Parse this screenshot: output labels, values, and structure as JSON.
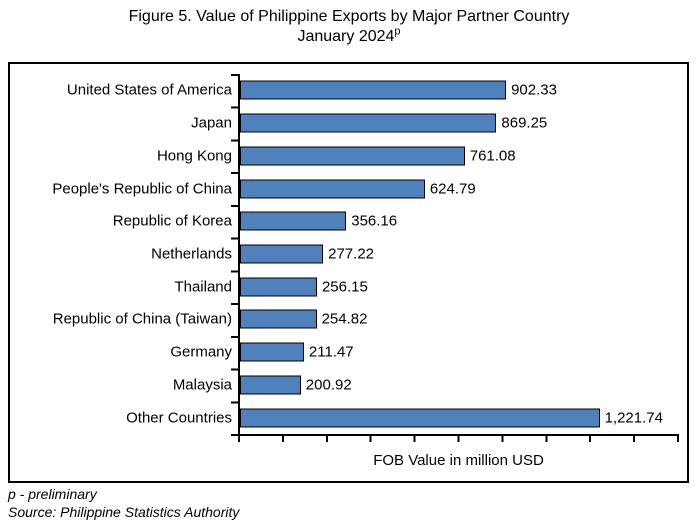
{
  "header": {
    "title_line1": "Figure 5. Value of Philippine Exports by Major Partner Country",
    "title_line2": "January 2024",
    "title_superscript": "p"
  },
  "chart_data": {
    "type": "bar",
    "orientation": "horizontal",
    "title": "Figure 5. Value of Philippine Exports by Major Partner Country January 2024p",
    "categories": [
      "United States of America",
      "Japan",
      "Hong Kong",
      "People's Republic of China",
      "Republic of Korea",
      "Netherlands",
      "Thailand",
      "Republic of China (Taiwan)",
      "Germany",
      "Malaysia",
      "Other Countries"
    ],
    "values": [
      902.33,
      869.25,
      761.08,
      624.79,
      356.16,
      277.22,
      256.15,
      254.82,
      211.47,
      200.92,
      1221.74
    ],
    "value_labels": [
      "902.33",
      "869.25",
      "761.08",
      "624.79",
      "356.16",
      "277.22",
      "256.15",
      "254.82",
      "211.47",
      "200.92",
      "1,221.74"
    ],
    "xlabel": "FOB Value in million USD",
    "ylabel": "",
    "xlim": [
      0,
      1500
    ],
    "x_tick_interval": 150,
    "x_tick_labels_visible": false,
    "grid": false,
    "data_labels": true,
    "legend": "none",
    "bar_color": "#4F81BD",
    "bar_border_color": "#000000",
    "axis_color": "#000000"
  },
  "footer": {
    "note": "p - preliminary",
    "source": "Source: Philippine Statistics Authority"
  }
}
